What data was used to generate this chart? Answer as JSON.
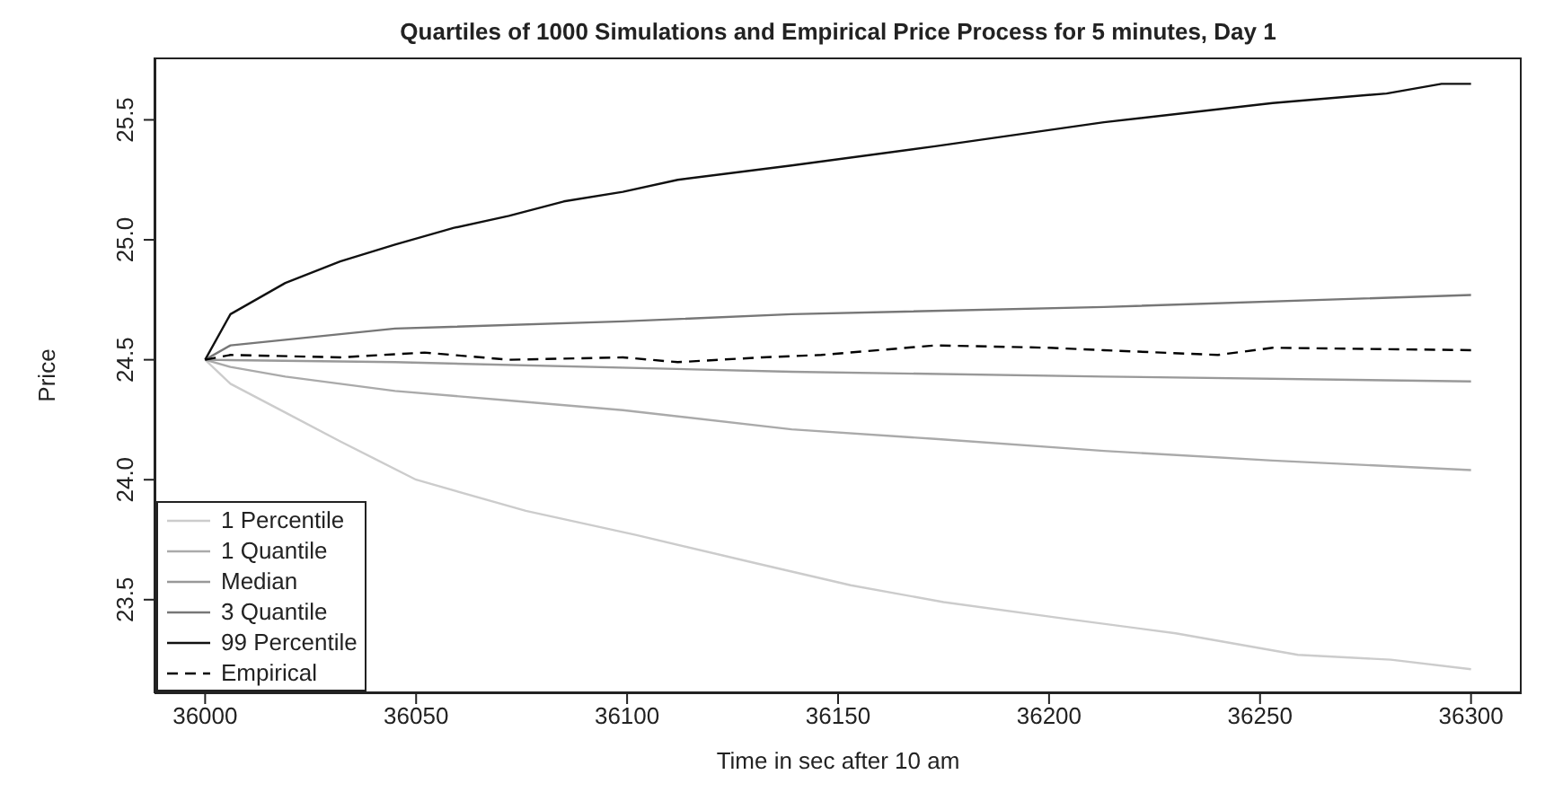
{
  "chart_data": {
    "type": "line",
    "title": "Quartiles of 1000 Simulations and Empirical Price Process for 5 minutes, Day 1",
    "xlabel": "Time in sec after 10 am",
    "ylabel": "Price",
    "xlim": [
      35988,
      36312
    ],
    "xticks": [
      36000,
      36050,
      36100,
      36150,
      36200,
      36250,
      36300
    ],
    "ylim": [
      23.11,
      25.76
    ],
    "yticks": [
      {
        "value": 23.5,
        "label": "23.5"
      },
      {
        "value": 24,
        "label": "24.0"
      },
      {
        "value": 24.5,
        "label": "24.5"
      },
      {
        "value": 25,
        "label": "25.0"
      },
      {
        "value": 25.5,
        "label": "25.5"
      }
    ],
    "legend": "bottom left",
    "marker": "none",
    "series": [
      {
        "name": "1 Percentile",
        "color": "#cccccc",
        "x": [
          36000,
          36006,
          36019,
          36032,
          36050,
          36076,
          36102,
          36131,
          36153,
          36175,
          36204,
          36230,
          36259,
          36281,
          36300
        ],
        "values": [
          24.5,
          24.4,
          24.28,
          24.16,
          24.0,
          23.87,
          23.77,
          23.65,
          23.56,
          23.49,
          23.42,
          23.36,
          23.27,
          23.25,
          23.21
        ]
      },
      {
        "name": "1 Quantile",
        "color": "#aaaaaa",
        "x": [
          36000,
          36006,
          36019,
          36045,
          36072,
          36099,
          36139,
          36173,
          36213,
          36253,
          36300
        ],
        "values": [
          24.5,
          24.47,
          24.43,
          24.37,
          24.33,
          24.29,
          24.21,
          24.17,
          24.12,
          24.08,
          24.04
        ]
      },
      {
        "name": "Median",
        "color": "#999999",
        "x": [
          36000,
          36045,
          36139,
          36213,
          36300
        ],
        "values": [
          24.5,
          24.49,
          24.45,
          24.43,
          24.41
        ]
      },
      {
        "name": "3 Quantile",
        "color": "#777777",
        "x": [
          36000,
          36006,
          36045,
          36099,
          36139,
          36213,
          36300
        ],
        "values": [
          24.5,
          24.56,
          24.63,
          24.66,
          24.69,
          24.72,
          24.77
        ]
      },
      {
        "name": "99 Percentile",
        "color": "#111111",
        "x": [
          36000,
          36006,
          36019,
          36032,
          36045,
          36059,
          36072,
          36085,
          36099,
          36112,
          36139,
          36173,
          36213,
          36253,
          36280,
          36293,
          36300
        ],
        "values": [
          24.5,
          24.69,
          24.82,
          24.91,
          24.98,
          25.05,
          25.1,
          25.16,
          25.2,
          25.25,
          25.31,
          25.39,
          25.49,
          25.57,
          25.61,
          25.65,
          25.65
        ]
      },
      {
        "name": "Empirical",
        "color": "#000000",
        "line_style": "dashed",
        "x": [
          36000,
          36006,
          36032,
          36052,
          36072,
          36099,
          36112,
          36132,
          36146,
          36173,
          36200,
          36213,
          36240,
          36253,
          36300
        ],
        "values": [
          24.5,
          24.52,
          24.51,
          24.53,
          24.5,
          24.51,
          24.49,
          24.51,
          24.52,
          24.56,
          24.55,
          24.54,
          24.52,
          24.55,
          24.54
        ]
      }
    ]
  }
}
